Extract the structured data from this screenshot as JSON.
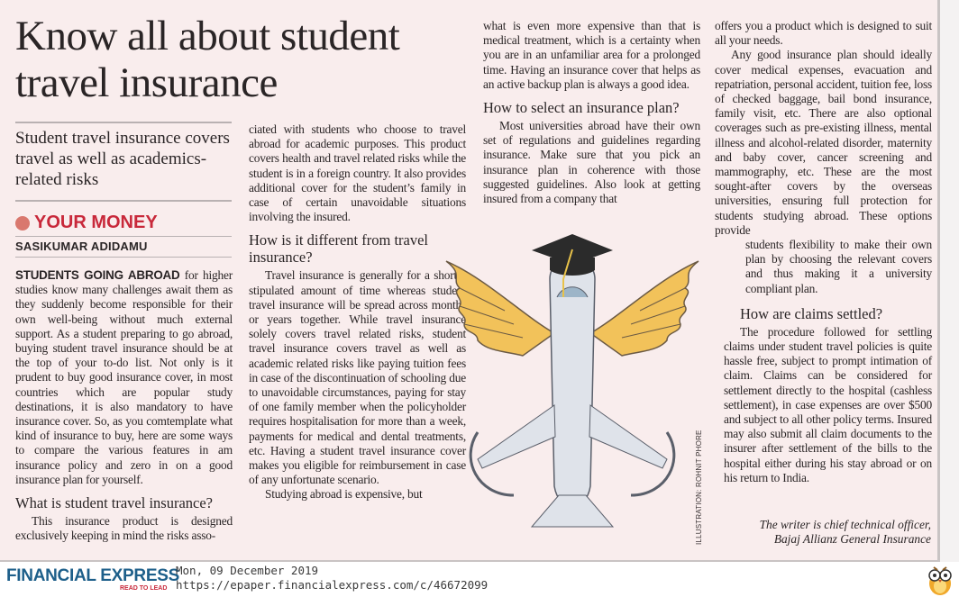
{
  "article": {
    "headline": "Know all about student travel insurance",
    "deck": "Student travel insurance covers travel as well as academics-related risks",
    "section": "YOUR MONEY",
    "byline": "SASIKUMAR ADIDAMU",
    "lead_caps": "STUDENTS GOING ABROAD",
    "intro": " for higher studies know many challenges await them as they suddenly become responsible for their own well-being without much external support. As a student preparing to go abroad, buying student travel insurance should be at the top of your to-do list. Not only is it prudent to buy good insurance cover, in most countries which are popular study destinations, it is also mandatory to have insurance cover. So, as you comtemplate what kind of insurance to buy, here are some ways to compare the various features in am insurance policy and zero in on a good insurance plan for yourself.",
    "h1": "What is student travel insurance?",
    "p1a": "This insurance product is designed exclusively keeping in mind the risks asso-",
    "p1b": "ciated with students who choose to travel abroad for academic purposes. This product covers health and travel related risks while the student is in a foreign country. It also provides additional cover for the student’s family in case of certain unavoidable situations involving the insured.",
    "h2": "How is it different from travel insurance?",
    "p2": "Travel insurance is generally for a shorter stipulated amount of time whereas student travel insurance will be spread across months or years together. While travel insurance solely covers travel related risks, student travel insurance covers travel as well as academic related risks like paying tuition fees in case of the discontinuation of schooling due to unavoidable circumstances, paying for stay of one family member when the policyholder requires hospitalisation for more than a week, payments for medical and dental treatments, etc. Having a student travel insurance cover makes you eligible for reimbursement in case of any unfortunate scenario.",
    "p3a": "Studying abroad is expensive, but",
    "p3b": "what is even more expensive than that is medical treatment, which is a certainty when you are in an unfamiliar area for a prolonged time. Having an insurance cover that helps as an active backup plan is always a good idea.",
    "h3": "How to select an insurance plan?",
    "p4a": "Most universities abroad have their own set of regulations and guidelines regarding insurance. Make sure that you pick an insurance plan in coherence with those suggested guidelines. Also look at getting insured from a company that",
    "p4b": "offers you a product which is designed to suit all your needs.",
    "p5a": "Any good insurance plan should ideally cover medical expenses, evacuation and repatriation, personal accident, tuition fee, loss of checked baggage, bail bond insurance, family visit, etc. There are also optional coverages such as pre-existing illness, mental illness and alcohol-related disorder, maternity and baby cover, cancer screening and mammography, etc. These are the most sought-after covers by the overseas universities, ensuring full protection for students studying abroad. These options provide",
    "p5b": "students flexibility to make their own plan by choosing the relevant covers and thus making it a university compliant plan.",
    "h4": "How are claims settled?",
    "p6": "The procedure followed for settling claims under student travel policies is quite hassle free, subject to prompt intimation of claim. Claims can be considered for settlement directly to the hospital (cashless settlement), in case expenses are over $500 and subject to all other policy terms. Insured may also submit all claim documents to the insurer after settlement of the bills to the hospital either during his stay abroad or on his return to India.",
    "signoff_1": "The writer is chief technical officer,",
    "signoff_2": "Bajaj Allianz General Insurance",
    "illustration_credit": "ILLUSTRATION: ROHNIT PHORE"
  },
  "footer": {
    "logo": "FINANCIAL EXPRESS",
    "tagline": "READ TO LEAD",
    "date": "Mon, 09 December 2019",
    "url": "https://epaper.financialexpress.com/c/46672099",
    "mascot_icon": "owl-icon"
  },
  "colors": {
    "paper": "#f9eded",
    "section_red": "#c8283a",
    "section_dot": "#d9786e",
    "logo_blue": "#1d5f8a"
  }
}
